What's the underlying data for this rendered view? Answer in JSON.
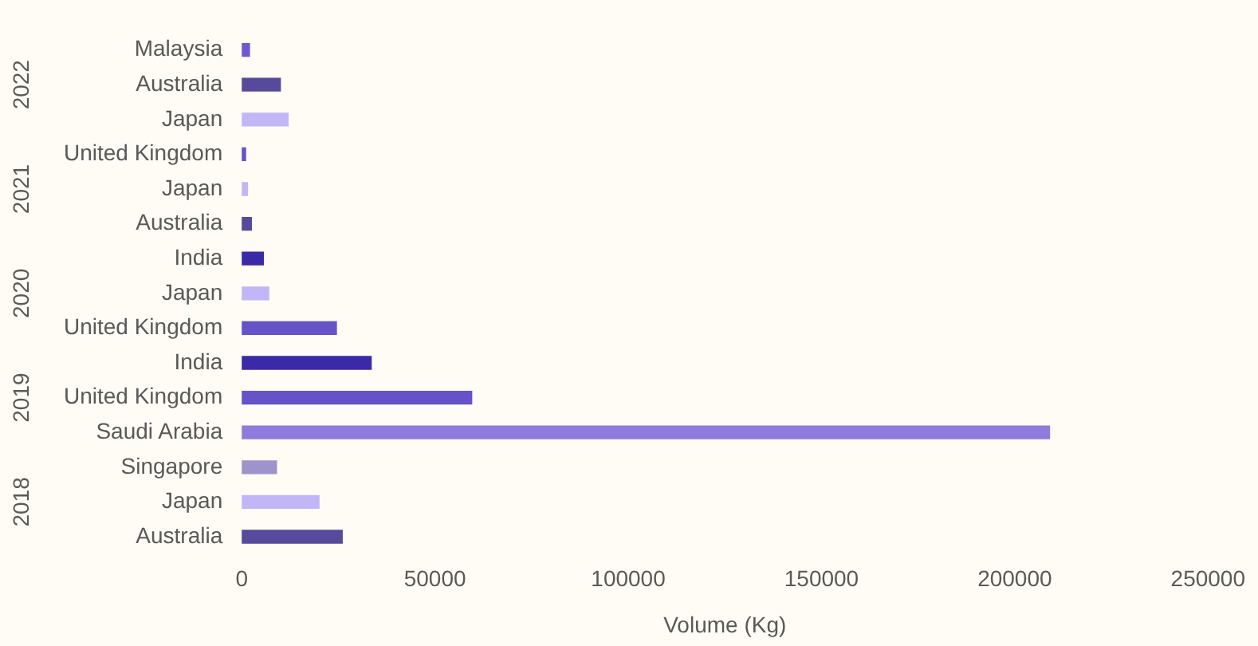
{
  "chart_data": {
    "type": "bar",
    "orientation": "horizontal",
    "xlabel": "Volume (Kg)",
    "categories": [
      "Malaysia",
      "Australia",
      "Japan",
      "United Kingdom",
      "Japan",
      "Australia",
      "India",
      "Japan",
      "United Kingdom",
      "India",
      "United Kingdom",
      "Saudi Arabia",
      "Singapore",
      "Japan",
      "Australia"
    ],
    "values": [
      2000,
      10000,
      12000,
      1000,
      1500,
      2500,
      5600,
      7000,
      24500,
      33500,
      59500,
      209000,
      9000,
      20000,
      26000
    ],
    "colors": [
      "#6a58d6",
      "#574a9c",
      "#c3b6f7",
      "#6652c9",
      "#c3b6f7",
      "#574a9c",
      "#3b2aa6",
      "#c3b6f7",
      "#6652c9",
      "#3b2aa6",
      "#6652c9",
      "#8e7cdc",
      "#9f93cc",
      "#c3b6f7",
      "#574a9c"
    ],
    "xlim": [
      0,
      250000
    ],
    "xticks": [
      0,
      50000,
      100000,
      150000,
      200000,
      250000
    ],
    "annotations": [
      "2022",
      "2021",
      "2020",
      "2019",
      "2018"
    ],
    "grid": false,
    "legend": false
  }
}
